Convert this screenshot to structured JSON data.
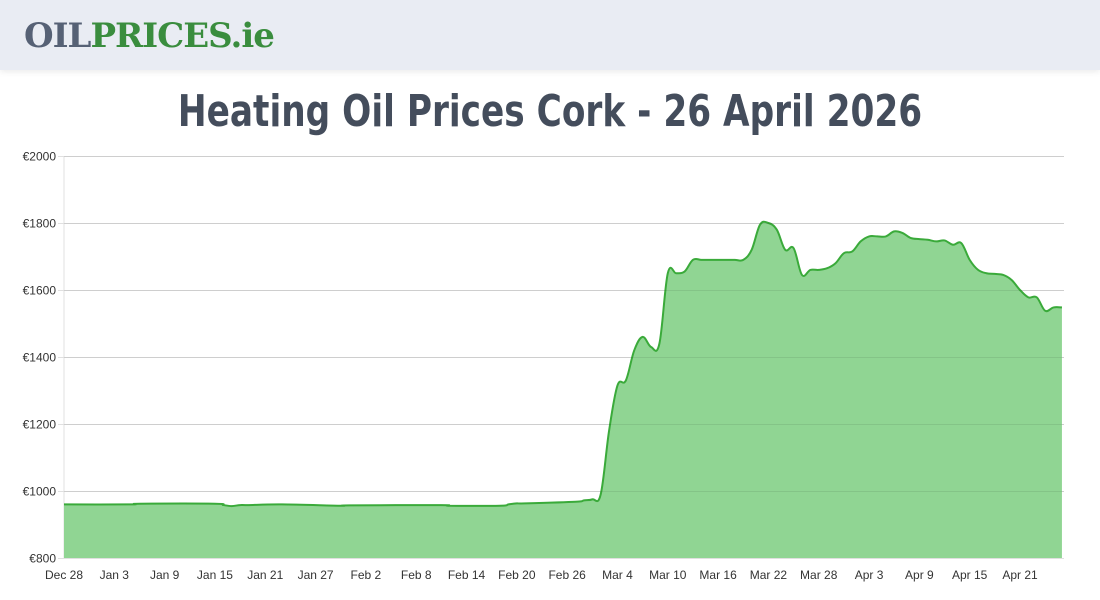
{
  "header": {
    "logo_part1": "OIL",
    "logo_part2": "PRICES.ie"
  },
  "page_title": "Heating Oil Prices Cork - 26 April 2026",
  "colors": {
    "line": "#3aaa3a",
    "fill": "#90d593",
    "grid": "#e0e0e0",
    "title": "#444d5c",
    "logo_grey": "#566175",
    "logo_green": "#3a8d3e",
    "header_bg": "#e9ecf3"
  },
  "chart_data": {
    "type": "area",
    "title": "Heating Oil Prices Cork - 26 April 2026",
    "xlabel": "",
    "ylabel": "",
    "ylim": [
      800,
      2000
    ],
    "yticks": [
      "€800",
      "€1000",
      "€1200",
      "€1400",
      "€1600",
      "€1800",
      "€2000"
    ],
    "ytick_values": [
      800,
      1000,
      1200,
      1400,
      1600,
      1800,
      2000
    ],
    "xticks": [
      "Dec 28",
      "Jan 3",
      "Jan 9",
      "Jan 15",
      "Jan 21",
      "Jan 27",
      "Feb 2",
      "Feb 8",
      "Feb 14",
      "Feb 20",
      "Feb 26",
      "Mar 4",
      "Mar 10",
      "Mar 16",
      "Mar 22",
      "Mar 28",
      "Apr 3",
      "Apr 9",
      "Apr 15",
      "Apr 21"
    ],
    "grid": true,
    "legend": false,
    "start_date": "Dec 28",
    "end_date": "Apr 26",
    "x_day_offset": [
      0,
      8,
      9,
      18,
      19,
      20,
      21,
      22,
      26,
      33,
      34,
      45,
      46,
      52,
      53,
      54,
      55,
      61,
      62,
      63,
      64,
      65,
      66,
      67,
      68,
      69,
      70,
      71,
      72,
      73,
      74,
      75,
      76,
      77,
      78,
      79,
      80,
      81,
      82,
      83,
      84,
      85,
      86,
      87,
      88,
      89,
      90,
      91,
      92,
      93,
      94,
      95,
      96,
      97,
      98,
      99,
      100,
      101,
      102,
      103,
      104,
      105,
      106,
      107,
      108,
      109,
      110,
      111,
      112,
      113,
      114,
      115,
      116,
      117,
      118,
      119
    ],
    "values": [
      960,
      960,
      962,
      962,
      958,
      955,
      958,
      958,
      960,
      956,
      957,
      958,
      956,
      956,
      960,
      963,
      963,
      968,
      972,
      975,
      990,
      1180,
      1315,
      1330,
      1420,
      1460,
      1430,
      1440,
      1650,
      1650,
      1655,
      1690,
      1690,
      1690,
      1690,
      1690,
      1690,
      1690,
      1720,
      1795,
      1800,
      1780,
      1720,
      1725,
      1645,
      1660,
      1660,
      1665,
      1680,
      1710,
      1715,
      1745,
      1760,
      1760,
      1760,
      1775,
      1770,
      1755,
      1752,
      1750,
      1745,
      1748,
      1735,
      1740,
      1690,
      1660,
      1650,
      1648,
      1645,
      1630,
      1600,
      1578,
      1578,
      1538,
      1548,
      1548
    ]
  }
}
